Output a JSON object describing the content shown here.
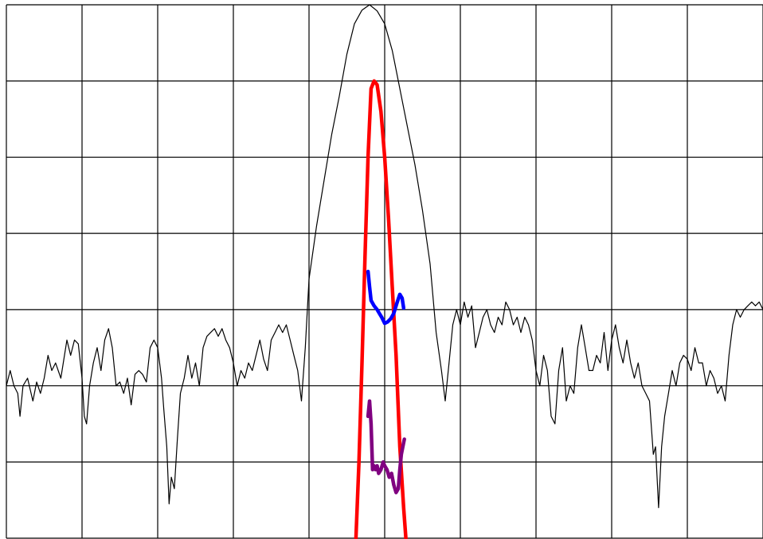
{
  "chart_data": {
    "type": "line",
    "title": "",
    "xlabel": "",
    "ylabel": "",
    "grid": true,
    "legend": "none",
    "xlim": [
      0,
      10
    ],
    "ylim": [
      0,
      7
    ],
    "x_divisions": 10,
    "y_divisions": 7,
    "series": [
      {
        "color": "#000000",
        "style": "thin",
        "points": [
          [
            0.0,
            2.0
          ],
          [
            0.05,
            2.2
          ],
          [
            0.1,
            2.0
          ],
          [
            0.15,
            1.9
          ],
          [
            0.18,
            1.6
          ],
          [
            0.22,
            2.0
          ],
          [
            0.28,
            2.1
          ],
          [
            0.35,
            1.8
          ],
          [
            0.4,
            2.05
          ],
          [
            0.45,
            1.9
          ],
          [
            0.5,
            2.1
          ],
          [
            0.55,
            2.4
          ],
          [
            0.6,
            2.2
          ],
          [
            0.65,
            2.3
          ],
          [
            0.72,
            2.1
          ],
          [
            0.8,
            2.6
          ],
          [
            0.85,
            2.4
          ],
          [
            0.9,
            2.6
          ],
          [
            0.95,
            2.55
          ],
          [
            1.0,
            2.1
          ],
          [
            1.03,
            1.6
          ],
          [
            1.06,
            1.5
          ],
          [
            1.1,
            2.0
          ],
          [
            1.15,
            2.3
          ],
          [
            1.2,
            2.5
          ],
          [
            1.25,
            2.2
          ],
          [
            1.3,
            2.6
          ],
          [
            1.35,
            2.75
          ],
          [
            1.4,
            2.5
          ],
          [
            1.45,
            2.0
          ],
          [
            1.5,
            2.05
          ],
          [
            1.55,
            1.9
          ],
          [
            1.6,
            2.1
          ],
          [
            1.65,
            1.75
          ],
          [
            1.7,
            2.15
          ],
          [
            1.75,
            2.2
          ],
          [
            1.8,
            2.15
          ],
          [
            1.85,
            2.05
          ],
          [
            1.9,
            2.5
          ],
          [
            1.95,
            2.6
          ],
          [
            2.0,
            2.5
          ],
          [
            2.05,
            2.1
          ],
          [
            2.08,
            1.7
          ],
          [
            2.12,
            1.2
          ],
          [
            2.15,
            0.45
          ],
          [
            2.18,
            0.8
          ],
          [
            2.22,
            0.65
          ],
          [
            2.26,
            1.3
          ],
          [
            2.3,
            1.9
          ],
          [
            2.35,
            2.1
          ],
          [
            2.4,
            2.4
          ],
          [
            2.45,
            2.1
          ],
          [
            2.5,
            2.3
          ],
          [
            2.55,
            2.0
          ],
          [
            2.6,
            2.5
          ],
          [
            2.65,
            2.65
          ],
          [
            2.7,
            2.7
          ],
          [
            2.75,
            2.75
          ],
          [
            2.8,
            2.65
          ],
          [
            2.85,
            2.75
          ],
          [
            2.9,
            2.6
          ],
          [
            2.95,
            2.5
          ],
          [
            3.0,
            2.3
          ],
          [
            3.05,
            2.0
          ],
          [
            3.1,
            2.2
          ],
          [
            3.15,
            2.1
          ],
          [
            3.2,
            2.3
          ],
          [
            3.25,
            2.2
          ],
          [
            3.3,
            2.4
          ],
          [
            3.35,
            2.6
          ],
          [
            3.4,
            2.35
          ],
          [
            3.45,
            2.2
          ],
          [
            3.5,
            2.6
          ],
          [
            3.55,
            2.7
          ],
          [
            3.6,
            2.8
          ],
          [
            3.65,
            2.7
          ],
          [
            3.7,
            2.8
          ],
          [
            3.75,
            2.6
          ],
          [
            3.8,
            2.4
          ],
          [
            3.85,
            2.2
          ],
          [
            3.9,
            1.8
          ],
          [
            3.95,
            2.5
          ],
          [
            4.0,
            3.4
          ],
          [
            4.1,
            4.1
          ],
          [
            4.2,
            4.7
          ],
          [
            4.3,
            5.3
          ],
          [
            4.4,
            5.8
          ],
          [
            4.5,
            6.35
          ],
          [
            4.6,
            6.75
          ],
          [
            4.7,
            6.93
          ],
          [
            4.8,
            7.0
          ],
          [
            4.9,
            6.92
          ],
          [
            5.0,
            6.75
          ],
          [
            5.1,
            6.4
          ],
          [
            5.2,
            5.9
          ],
          [
            5.3,
            5.4
          ],
          [
            5.4,
            4.9
          ],
          [
            5.5,
            4.3
          ],
          [
            5.6,
            3.6
          ],
          [
            5.68,
            2.7
          ],
          [
            5.75,
            2.2
          ],
          [
            5.8,
            1.8
          ],
          [
            5.85,
            2.3
          ],
          [
            5.9,
            2.8
          ],
          [
            5.95,
            3.0
          ],
          [
            6.0,
            2.8
          ],
          [
            6.05,
            3.1
          ],
          [
            6.1,
            2.9
          ],
          [
            6.15,
            3.05
          ],
          [
            6.2,
            2.5
          ],
          [
            6.25,
            2.7
          ],
          [
            6.3,
            2.9
          ],
          [
            6.35,
            3.0
          ],
          [
            6.4,
            2.8
          ],
          [
            6.45,
            2.7
          ],
          [
            6.5,
            2.9
          ],
          [
            6.55,
            2.8
          ],
          [
            6.6,
            3.1
          ],
          [
            6.65,
            3.0
          ],
          [
            6.7,
            2.8
          ],
          [
            6.75,
            2.9
          ],
          [
            6.8,
            2.7
          ],
          [
            6.85,
            2.9
          ],
          [
            6.9,
            2.8
          ],
          [
            6.95,
            2.6
          ],
          [
            7.0,
            2.2
          ],
          [
            7.05,
            2.0
          ],
          [
            7.1,
            2.4
          ],
          [
            7.15,
            2.2
          ],
          [
            7.2,
            1.6
          ],
          [
            7.25,
            1.5
          ],
          [
            7.3,
            2.2
          ],
          [
            7.35,
            2.5
          ],
          [
            7.4,
            1.8
          ],
          [
            7.45,
            2.0
          ],
          [
            7.5,
            1.9
          ],
          [
            7.55,
            2.5
          ],
          [
            7.6,
            2.8
          ],
          [
            7.65,
            2.5
          ],
          [
            7.7,
            2.2
          ],
          [
            7.75,
            2.2
          ],
          [
            7.8,
            2.4
          ],
          [
            7.85,
            2.3
          ],
          [
            7.9,
            2.7
          ],
          [
            7.95,
            2.2
          ],
          [
            8.0,
            2.6
          ],
          [
            8.05,
            2.8
          ],
          [
            8.1,
            2.5
          ],
          [
            8.15,
            2.3
          ],
          [
            8.2,
            2.6
          ],
          [
            8.25,
            2.3
          ],
          [
            8.3,
            2.1
          ],
          [
            8.35,
            2.3
          ],
          [
            8.4,
            2.0
          ],
          [
            8.45,
            1.9
          ],
          [
            8.5,
            1.8
          ],
          [
            8.55,
            1.1
          ],
          [
            8.58,
            1.2
          ],
          [
            8.62,
            0.4
          ],
          [
            8.66,
            1.2
          ],
          [
            8.7,
            1.6
          ],
          [
            8.75,
            1.9
          ],
          [
            8.8,
            2.2
          ],
          [
            8.85,
            2.0
          ],
          [
            8.9,
            2.3
          ],
          [
            8.95,
            2.4
          ],
          [
            9.0,
            2.35
          ],
          [
            9.05,
            2.2
          ],
          [
            9.1,
            2.5
          ],
          [
            9.15,
            2.3
          ],
          [
            9.2,
            2.3
          ],
          [
            9.25,
            2.0
          ],
          [
            9.3,
            2.2
          ],
          [
            9.35,
            2.1
          ],
          [
            9.4,
            1.9
          ],
          [
            9.45,
            2.0
          ],
          [
            9.5,
            1.8
          ],
          [
            9.55,
            2.4
          ],
          [
            9.6,
            2.8
          ],
          [
            9.65,
            3.0
          ],
          [
            9.7,
            2.9
          ],
          [
            9.75,
            3.0
          ],
          [
            9.8,
            3.05
          ],
          [
            9.85,
            3.1
          ],
          [
            9.9,
            3.05
          ],
          [
            9.95,
            3.1
          ],
          [
            10.0,
            3.0
          ]
        ]
      },
      {
        "color": "#ff0000",
        "style": "thick",
        "points": [
          [
            4.62,
            0.0
          ],
          [
            4.66,
            1.0
          ],
          [
            4.7,
            2.3
          ],
          [
            4.74,
            3.7
          ],
          [
            4.78,
            5.0
          ],
          [
            4.82,
            5.9
          ],
          [
            4.86,
            6.0
          ],
          [
            4.9,
            5.95
          ],
          [
            4.95,
            5.6
          ],
          [
            5.0,
            5.0
          ],
          [
            5.05,
            4.2
          ],
          [
            5.1,
            3.3
          ],
          [
            5.15,
            2.4
          ],
          [
            5.2,
            1.2
          ],
          [
            5.25,
            0.4
          ],
          [
            5.28,
            0.0
          ]
        ]
      },
      {
        "color": "#0000ff",
        "style": "thick",
        "points": [
          [
            4.78,
            3.5
          ],
          [
            4.8,
            3.3
          ],
          [
            4.82,
            3.12
          ],
          [
            4.86,
            3.05
          ],
          [
            4.9,
            3.0
          ],
          [
            4.93,
            2.95
          ],
          [
            4.96,
            2.9
          ],
          [
            5.0,
            2.82
          ],
          [
            5.04,
            2.84
          ],
          [
            5.08,
            2.88
          ],
          [
            5.12,
            2.95
          ],
          [
            5.16,
            3.08
          ],
          [
            5.2,
            3.2
          ],
          [
            5.23,
            3.15
          ],
          [
            5.25,
            3.02
          ]
        ]
      },
      {
        "color": "#800080",
        "style": "thick",
        "points": [
          [
            4.78,
            1.6
          ],
          [
            4.8,
            1.8
          ],
          [
            4.82,
            1.5
          ],
          [
            4.84,
            0.9
          ],
          [
            4.86,
            0.95
          ],
          [
            4.88,
            0.9
          ],
          [
            4.9,
            0.95
          ],
          [
            4.92,
            0.85
          ],
          [
            4.95,
            0.9
          ],
          [
            4.98,
            1.0
          ],
          [
            5.0,
            0.95
          ],
          [
            5.03,
            0.9
          ],
          [
            5.06,
            0.8
          ],
          [
            5.09,
            0.85
          ],
          [
            5.12,
            0.7
          ],
          [
            5.15,
            0.6
          ],
          [
            5.18,
            0.65
          ],
          [
            5.2,
            0.9
          ],
          [
            5.22,
            1.1
          ],
          [
            5.24,
            1.2
          ],
          [
            5.26,
            1.3
          ]
        ]
      }
    ]
  }
}
